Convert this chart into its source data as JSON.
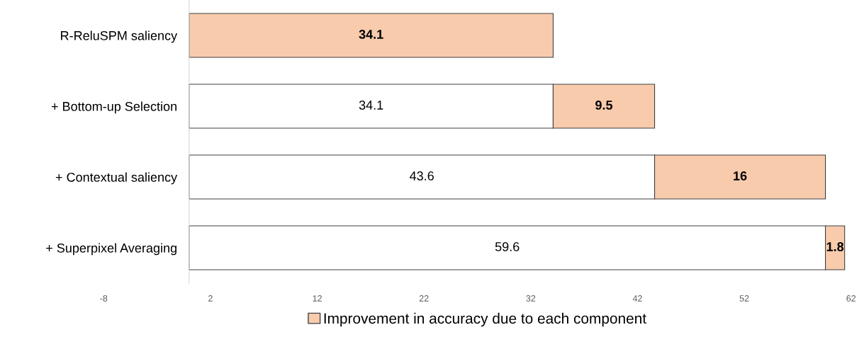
{
  "chart_data": {
    "type": "bar",
    "orientation": "horizontal",
    "stacked": true,
    "categories": [
      "R-ReluSPM saliency",
      "+ Bottom-up Selection",
      "+ Contextual saliency",
      "+ Superpixel Averaging"
    ],
    "series": [
      {
        "color": "#ffffff",
        "values": [
          null,
          34.1,
          43.6,
          59.6
        ],
        "value_labels": [
          null,
          "34.1",
          "43.6",
          "59.6"
        ]
      },
      {
        "name": "Improvement in accuracy due to each component",
        "color": "#f8cbad",
        "values": [
          34.1,
          9.5,
          16,
          1.8
        ],
        "value_labels": [
          "34.1",
          "9.5",
          "16",
          "1.8"
        ]
      }
    ],
    "xlim": [
      -8,
      62
    ],
    "xticks": [
      -8,
      2,
      12,
      22,
      32,
      42,
      52,
      62
    ],
    "grid": false,
    "legend": "bottom"
  }
}
